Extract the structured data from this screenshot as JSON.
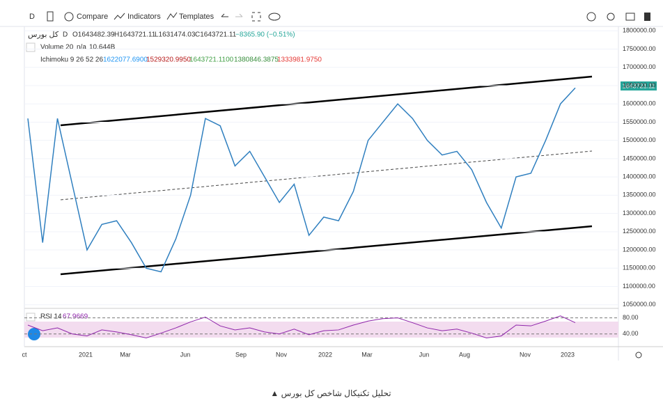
{
  "toolbar": {
    "interval": "D",
    "compare": "Compare",
    "indicators": "Indicators",
    "templates": "Templates"
  },
  "legend": {
    "symbol": "کل بورس",
    "interval": "D",
    "open": "O1643482.39",
    "high": "H1643721.11",
    "low": "L1631474.03",
    "close": "C1643721.11",
    "change": "−8365.90 (−0.51%)",
    "volume_name": "Volume 20",
    "volume_na": "n/a",
    "volume_value": "10.644B",
    "ichimoku_name": "Ichimoku 9 26 52 26",
    "ichimoku_values": [
      "1622077.6900",
      "1529320.9950",
      "1643721.1100",
      "1380846.3875",
      "1333981.9750"
    ]
  },
  "chart": {
    "price_label": "1643721.11",
    "yticks": [
      {
        "value": 1800000,
        "label": "1800000.00"
      },
      {
        "value": 1750000,
        "label": "1750000.00"
      },
      {
        "value": 1700000,
        "label": "1700000.00"
      },
      {
        "value": 1650000,
        "label": "1650000.00"
      },
      {
        "value": 1600000,
        "label": "1600000.00"
      },
      {
        "value": 1550000,
        "label": "1550000.00"
      },
      {
        "value": 1500000,
        "label": "1500000.00"
      },
      {
        "value": 1450000,
        "label": "1450000.00"
      },
      {
        "value": 1400000,
        "label": "1400000.00"
      },
      {
        "value": 1350000,
        "label": "1350000.00"
      },
      {
        "value": 1300000,
        "label": "1300000.00"
      },
      {
        "value": 1250000,
        "label": "1250000.00"
      },
      {
        "value": 1200000,
        "label": "1200000.00"
      },
      {
        "value": 1150000,
        "label": "1150000.00"
      },
      {
        "value": 1100000,
        "label": "1100000.00"
      },
      {
        "value": 1050000,
        "label": "1050000.00"
      }
    ],
    "ylim": [
      1040000,
      1812000
    ],
    "close": [
      1560000,
      1220000,
      1560000,
      1380000,
      1200000,
      1270000,
      1280000,
      1220000,
      1150000,
      1140000,
      1230000,
      1350000,
      1560000,
      1540000,
      1430000,
      1470000,
      1400000,
      1330000,
      1380000,
      1240000,
      1290000,
      1280000,
      1360000,
      1500000,
      1550000,
      1600000,
      1560000,
      1500000,
      1460000,
      1470000,
      1420000,
      1330000,
      1260000,
      1400000,
      1410000,
      1500000,
      1600000,
      1643721.11
    ],
    "color": "#2f7fbf",
    "xlabels": [
      "ct",
      "2021",
      "Mar",
      "Jun",
      "Sep",
      "Nov",
      "2022",
      "Mar",
      "Jun",
      "Aug",
      "Nov",
      "2023"
    ],
    "rsi_name": "RSI 14",
    "rsi_value": "67.9669",
    "rsi_ylim": [
      10,
      95
    ],
    "rsi_yticks": [
      {
        "value": 80,
        "label": "80.00"
      },
      {
        "value": 40,
        "label": "40.00"
      }
    ],
    "rsi": [
      62,
      48,
      55,
      40,
      35,
      50,
      45,
      38,
      30,
      42,
      55,
      70,
      82,
      60,
      50,
      55,
      45,
      40,
      52,
      38,
      48,
      50,
      62,
      72,
      78,
      80,
      68,
      55,
      48,
      52,
      42,
      30,
      35,
      62,
      60,
      72,
      85,
      67.9669
    ],
    "rsi_color": "#8e24aa"
  },
  "caption": "▲  تحلیل تکنیکال شاخص کل بورس"
}
